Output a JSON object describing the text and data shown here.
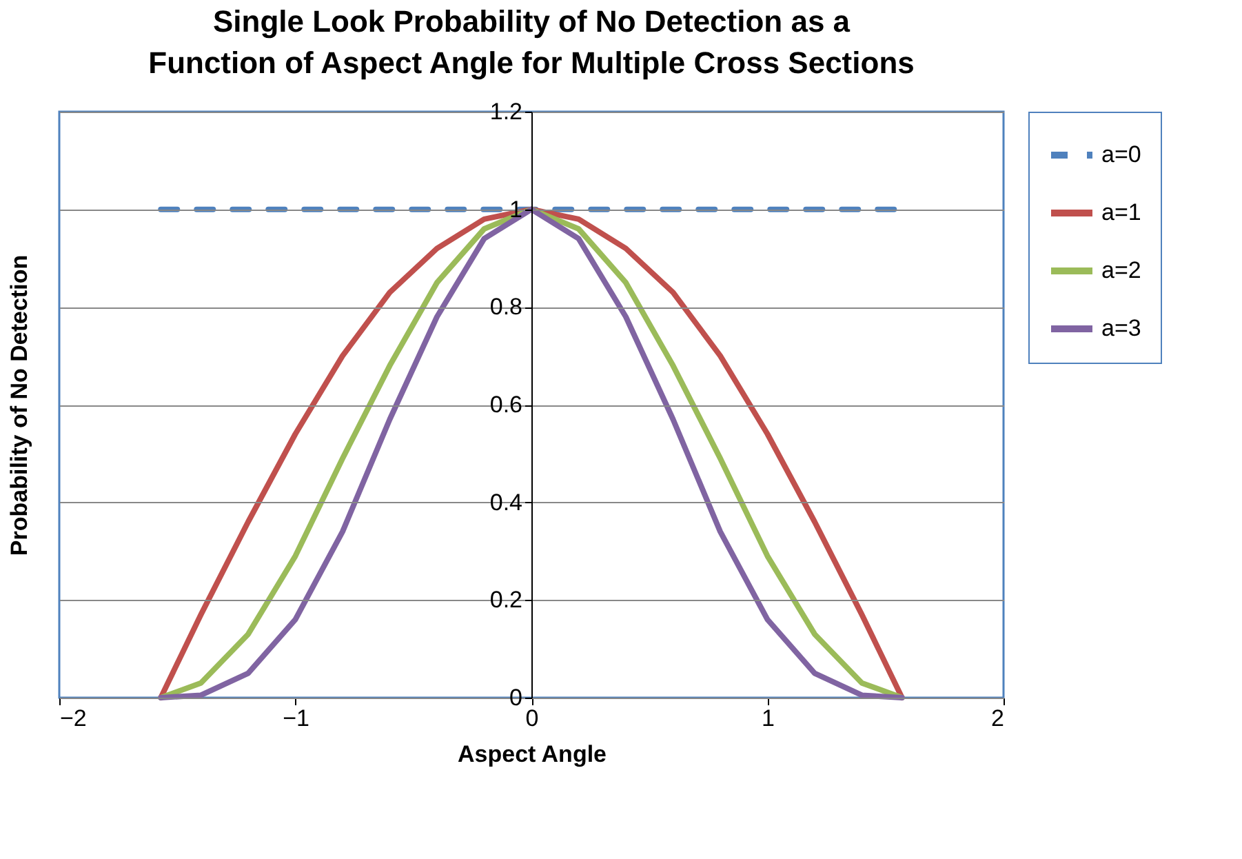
{
  "chart_data": {
    "type": "line",
    "title": "Single Look Probability of No Detection as a Function of Aspect Angle for Multiple Cross Sections",
    "xlabel": "Aspect Angle",
    "ylabel": "Probability of No Detection",
    "xlim": [
      -2,
      2
    ],
    "xticks": [
      -2,
      -1,
      0,
      1,
      2
    ],
    "ylim": [
      0,
      1.2
    ],
    "yticks": [
      0,
      0.2,
      0.4,
      0.6,
      0.8,
      1,
      1.2
    ],
    "grid": "y",
    "legend": "right",
    "marker": "none",
    "series": [
      {
        "name": "a=0",
        "color": "#4f81bd",
        "line_style": "dashed",
        "x": [
          -1.57,
          1.57
        ],
        "values": [
          1,
          1
        ]
      },
      {
        "name": "a=1",
        "color": "#c0504d",
        "line_style": "solid",
        "x": [
          -1.57,
          -1.4,
          -1.2,
          -1.0,
          -0.8,
          -0.6,
          -0.4,
          -0.2,
          0,
          0.2,
          0.4,
          0.6,
          0.8,
          1.0,
          1.2,
          1.4,
          1.57
        ],
        "values": [
          0,
          0.17,
          0.36,
          0.54,
          0.7,
          0.83,
          0.92,
          0.98,
          1,
          0.98,
          0.92,
          0.83,
          0.7,
          0.54,
          0.36,
          0.17,
          0
        ]
      },
      {
        "name": "a=2",
        "color": "#9bbb59",
        "line_style": "solid",
        "x": [
          -1.57,
          -1.4,
          -1.2,
          -1.0,
          -0.8,
          -0.6,
          -0.4,
          -0.2,
          0,
          0.2,
          0.4,
          0.6,
          0.8,
          1.0,
          1.2,
          1.4,
          1.57
        ],
        "values": [
          0,
          0.03,
          0.13,
          0.29,
          0.49,
          0.68,
          0.85,
          0.96,
          1,
          0.96,
          0.85,
          0.68,
          0.49,
          0.29,
          0.13,
          0.03,
          0
        ]
      },
      {
        "name": "a=3",
        "color": "#8064a2",
        "line_style": "solid",
        "x": [
          -1.57,
          -1.4,
          -1.2,
          -1.0,
          -0.8,
          -0.6,
          -0.4,
          -0.2,
          0,
          0.2,
          0.4,
          0.6,
          0.8,
          1.0,
          1.2,
          1.4,
          1.57
        ],
        "values": [
          0,
          0.005,
          0.05,
          0.16,
          0.34,
          0.57,
          0.78,
          0.94,
          1,
          0.94,
          0.78,
          0.57,
          0.34,
          0.16,
          0.05,
          0.005,
          0
        ]
      }
    ]
  }
}
